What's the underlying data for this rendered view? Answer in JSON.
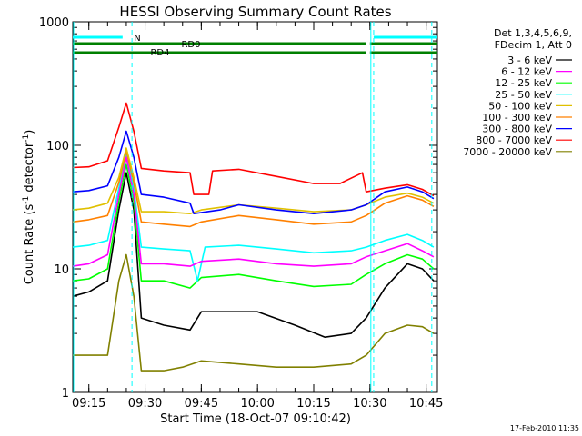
{
  "chart_data": {
    "type": "line",
    "title": "HESSI Observing Summary Count Rates",
    "xlabel": "Start Time (18-Oct-07 09:10:42)",
    "ylabel_main": "Count Rate (s",
    "ylabel_sup1": "-1",
    "ylabel_mid": " detector",
    "ylabel_sup2": "-1",
    "ylabel_end": ")",
    "y_scale": "log",
    "ylim": [
      1,
      1000
    ],
    "xlim": [
      "09:10:42",
      "10:48:00"
    ],
    "x_ticks": [
      "09:15",
      "09:30",
      "09:45",
      "10:00",
      "10:15",
      "10:30",
      "10:45"
    ],
    "y_ticks": [
      {
        "value": 1,
        "label": "1"
      },
      {
        "value": 10,
        "label": "10"
      },
      {
        "value": 100,
        "label": "100"
      },
      {
        "value": 1000,
        "label": "1000"
      }
    ],
    "legend_header": [
      "Det 1,3,4,5,6,9,",
      "FDecim 1, Att 0"
    ],
    "legend_placement": "right",
    "footer_date": "17-Feb-2010 11:35",
    "series": [
      {
        "name": "3 - 6 keV",
        "color": "#000000",
        "values": [
          [
            "09:10:42",
            6
          ],
          [
            "09:15:00",
            6.5
          ],
          [
            "09:20:00",
            8
          ],
          [
            "09:23:00",
            30
          ],
          [
            "09:25:00",
            60
          ],
          [
            "09:27:00",
            30
          ],
          [
            "09:29:00",
            4
          ],
          [
            "09:35:00",
            3.5
          ],
          [
            "09:42:00",
            3.2
          ],
          [
            "09:45:00",
            4.5
          ],
          [
            "10:00:00",
            4.5
          ],
          [
            "10:10:00",
            3.5
          ],
          [
            "10:18:00",
            2.8
          ],
          [
            "10:25:00",
            3
          ],
          [
            "10:29:00",
            4
          ],
          [
            "10:34:00",
            7
          ],
          [
            "10:40:00",
            11
          ],
          [
            "10:44:00",
            10
          ],
          [
            "10:47:00",
            8
          ]
        ]
      },
      {
        "name": "6 - 12 keV",
        "color": "#ff00ff",
        "values": [
          [
            "09:10:42",
            10.5
          ],
          [
            "09:15:00",
            11
          ],
          [
            "09:20:00",
            13
          ],
          [
            "09:23:00",
            40
          ],
          [
            "09:25:00",
            80
          ],
          [
            "09:27:00",
            40
          ],
          [
            "09:29:00",
            11
          ],
          [
            "09:35:00",
            11
          ],
          [
            "09:42:00",
            10.5
          ],
          [
            "09:45:00",
            11.5
          ],
          [
            "09:55:00",
            12
          ],
          [
            "10:05:00",
            11
          ],
          [
            "10:15:00",
            10.5
          ],
          [
            "10:25:00",
            11
          ],
          [
            "10:29:00",
            12.5
          ],
          [
            "10:34:00",
            14
          ],
          [
            "10:40:00",
            16
          ],
          [
            "10:44:00",
            14
          ],
          [
            "10:47:00",
            12.5
          ]
        ]
      },
      {
        "name": "12 - 25 keV",
        "color": "#00ff00",
        "values": [
          [
            "09:10:42",
            8
          ],
          [
            "09:15:00",
            8.3
          ],
          [
            "09:20:00",
            10
          ],
          [
            "09:23:00",
            35
          ],
          [
            "09:25:00",
            70
          ],
          [
            "09:27:00",
            35
          ],
          [
            "09:29:00",
            8
          ],
          [
            "09:35:00",
            8
          ],
          [
            "09:42:00",
            7
          ],
          [
            "09:45:00",
            8.5
          ],
          [
            "09:55:00",
            9
          ],
          [
            "10:05:00",
            8
          ],
          [
            "10:15:00",
            7.2
          ],
          [
            "10:25:00",
            7.5
          ],
          [
            "10:29:00",
            9
          ],
          [
            "10:34:00",
            11
          ],
          [
            "10:40:00",
            13
          ],
          [
            "10:44:00",
            12
          ],
          [
            "10:47:00",
            10
          ]
        ]
      },
      {
        "name": "25 - 50 keV",
        "color": "#00ffff",
        "values": [
          [
            "09:10:42",
            15
          ],
          [
            "09:15:00",
            15.5
          ],
          [
            "09:20:00",
            17
          ],
          [
            "09:23:00",
            45
          ],
          [
            "09:25:00",
            85
          ],
          [
            "09:27:00",
            45
          ],
          [
            "09:29:00",
            15
          ],
          [
            "09:35:00",
            14.5
          ],
          [
            "09:42:00",
            14
          ],
          [
            "09:44:00",
            8
          ],
          [
            "09:46:00",
            15
          ],
          [
            "09:55:00",
            15.5
          ],
          [
            "10:05:00",
            14.5
          ],
          [
            "10:15:00",
            13.5
          ],
          [
            "10:25:00",
            14
          ],
          [
            "10:29:00",
            15
          ],
          [
            "10:34:00",
            17
          ],
          [
            "10:40:00",
            19
          ],
          [
            "10:44:00",
            17
          ],
          [
            "10:47:00",
            15
          ]
        ]
      },
      {
        "name": "50 - 100 keV",
        "color": "#e0c000",
        "values": [
          [
            "09:10:42",
            30
          ],
          [
            "09:15:00",
            31
          ],
          [
            "09:20:00",
            34
          ],
          [
            "09:23:00",
            55
          ],
          [
            "09:25:00",
            95
          ],
          [
            "09:27:00",
            55
          ],
          [
            "09:29:00",
            29
          ],
          [
            "09:35:00",
            29
          ],
          [
            "09:42:00",
            28
          ],
          [
            "09:45:00",
            30
          ],
          [
            "09:55:00",
            33
          ],
          [
            "10:05:00",
            31
          ],
          [
            "10:15:00",
            29
          ],
          [
            "10:25:00",
            30
          ],
          [
            "10:29:00",
            33
          ],
          [
            "10:34:00",
            38
          ],
          [
            "10:40:00",
            41
          ],
          [
            "10:44:00",
            38
          ],
          [
            "10:47:00",
            34
          ]
        ]
      },
      {
        "name": "100 - 300 keV",
        "color": "#ff8000",
        "values": [
          [
            "09:10:42",
            24
          ],
          [
            "09:15:00",
            25
          ],
          [
            "09:20:00",
            27
          ],
          [
            "09:23:00",
            50
          ],
          [
            "09:25:00",
            90
          ],
          [
            "09:27:00",
            50
          ],
          [
            "09:29:00",
            24
          ],
          [
            "09:35:00",
            23
          ],
          [
            "09:42:00",
            22
          ],
          [
            "09:45:00",
            24
          ],
          [
            "09:55:00",
            27
          ],
          [
            "10:05:00",
            25
          ],
          [
            "10:15:00",
            23
          ],
          [
            "10:25:00",
            24
          ],
          [
            "10:29:00",
            27
          ],
          [
            "10:34:00",
            34
          ],
          [
            "10:40:00",
            39
          ],
          [
            "10:44:00",
            36
          ],
          [
            "10:47:00",
            32
          ]
        ]
      },
      {
        "name": "300 - 800 keV",
        "color": "#0000ff",
        "values": [
          [
            "09:10:42",
            42
          ],
          [
            "09:15:00",
            43
          ],
          [
            "09:20:00",
            47
          ],
          [
            "09:23:00",
            80
          ],
          [
            "09:25:00",
            130
          ],
          [
            "09:27:00",
            80
          ],
          [
            "09:29:00",
            40
          ],
          [
            "09:35:00",
            38
          ],
          [
            "09:42:00",
            34
          ],
          [
            "09:43:00",
            28
          ],
          [
            "09:50:00",
            30
          ],
          [
            "09:55:00",
            33
          ],
          [
            "10:05:00",
            30
          ],
          [
            "10:15:00",
            28
          ],
          [
            "10:25:00",
            30
          ],
          [
            "10:29:00",
            33
          ],
          [
            "10:34:00",
            42
          ],
          [
            "10:40:00",
            46
          ],
          [
            "10:44:00",
            42
          ],
          [
            "10:47:00",
            37
          ]
        ]
      },
      {
        "name": "800 - 7000 keV",
        "color": "#ff0000",
        "values": [
          [
            "09:10:42",
            66
          ],
          [
            "09:15:00",
            67
          ],
          [
            "09:20:00",
            75
          ],
          [
            "09:23:00",
            140
          ],
          [
            "09:25:00",
            220
          ],
          [
            "09:27:00",
            130
          ],
          [
            "09:29:00",
            65
          ],
          [
            "09:35:00",
            62
          ],
          [
            "09:42:00",
            60
          ],
          [
            "09:43:00",
            40
          ],
          [
            "09:47:00",
            40
          ],
          [
            "09:48:00",
            62
          ],
          [
            "09:55:00",
            64
          ],
          [
            "10:05:00",
            56
          ],
          [
            "10:15:00",
            49
          ],
          [
            "10:22:00",
            49
          ],
          [
            "10:28:00",
            60
          ],
          [
            "10:29:00",
            42
          ],
          [
            "10:34:00",
            45
          ],
          [
            "10:40:00",
            48
          ],
          [
            "10:44:00",
            44
          ],
          [
            "10:47:00",
            39
          ]
        ]
      },
      {
        "name": "7000 - 20000 keV",
        "color": "#808000",
        "values": [
          [
            "09:10:42",
            2
          ],
          [
            "09:15:00",
            2
          ],
          [
            "09:20:00",
            2
          ],
          [
            "09:23:00",
            8
          ],
          [
            "09:25:00",
            13
          ],
          [
            "09:27:00",
            6
          ],
          [
            "09:29:00",
            1.5
          ],
          [
            "09:35:00",
            1.5
          ],
          [
            "09:40:00",
            1.6
          ],
          [
            "09:45:00",
            1.8
          ],
          [
            "09:55:00",
            1.7
          ],
          [
            "10:05:00",
            1.6
          ],
          [
            "10:15:00",
            1.6
          ],
          [
            "10:25:00",
            1.7
          ],
          [
            "10:29:00",
            2
          ],
          [
            "10:34:00",
            3
          ],
          [
            "10:40:00",
            3.5
          ],
          [
            "10:44:00",
            3.4
          ],
          [
            "10:47:00",
            3
          ]
        ]
      }
    ],
    "annotations": {
      "N": {
        "label": "N",
        "color": "#00ffff",
        "segments": [
          [
            "09:10:42",
            "09:24:00"
          ],
          [
            "10:31:00",
            "10:48:00"
          ]
        ]
      },
      "RD0": {
        "label": "RD0",
        "color": "#008000",
        "segments": [
          [
            "09:10:42",
            "10:29:00"
          ],
          [
            "10:30:00",
            "10:48:00"
          ]
        ]
      },
      "RD4": {
        "label": "RD4",
        "color": "#008000",
        "segments": [
          [
            "09:43:00",
            "09:47:00"
          ]
        ]
      },
      "cyan_markers": [
        "09:26:30",
        "10:31:00",
        "10:46:30"
      ],
      "cyan_solid": [
        "09:10:42",
        "10:30:00"
      ]
    }
  }
}
